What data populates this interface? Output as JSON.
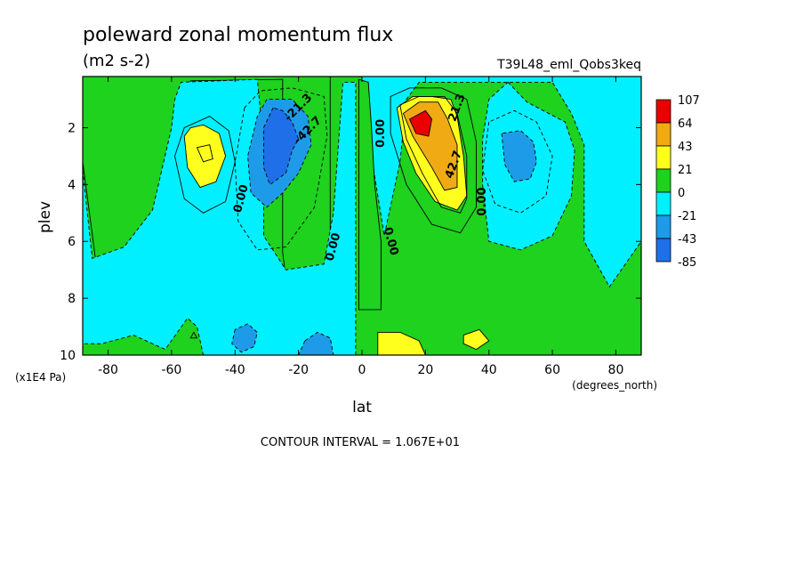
{
  "title": "poleward zonal momentum flux",
  "units": "(m2 s-2)",
  "run_label": "T39L48_eml_Qobs3keq",
  "contour_interval": "CONTOUR INTERVAL = 1.067E+01",
  "colors": {
    "lt_-43": "#1e6fe8",
    "-43_-21": "#1e9be8",
    "-21_0": "#00f0ff",
    "0_21": "#1ed21e",
    "21_43": "#ffff1e",
    "43_64": "#f0aa14",
    "gt_64": "#e80000",
    "frame": "#000000"
  },
  "chart_data": {
    "type": "heatmap",
    "xlabel": "lat",
    "ylabel": "plev",
    "x_units": "(degrees_north)",
    "y_units": "(x1E4 Pa)",
    "xlim": [
      -88,
      88
    ],
    "ylim": [
      10,
      0.2
    ],
    "x_ticks": [
      {
        "value": -80,
        "label": "-80"
      },
      {
        "value": -60,
        "label": "-60"
      },
      {
        "value": -40,
        "label": "-40"
      },
      {
        "value": -20,
        "label": "-20"
      },
      {
        "value": 0,
        "label": "0"
      },
      {
        "value": 20,
        "label": "20"
      },
      {
        "value": 40,
        "label": "40"
      },
      {
        "value": 60,
        "label": "60"
      },
      {
        "value": 80,
        "label": "80"
      }
    ],
    "y_ticks": [
      {
        "value": 2,
        "label": "2"
      },
      {
        "value": 4,
        "label": "4"
      },
      {
        "value": 6,
        "label": "6"
      },
      {
        "value": 8,
        "label": "8"
      },
      {
        "value": 10,
        "label": "10"
      }
    ],
    "colorbar": {
      "labels": [
        "107",
        "64",
        "43",
        "21",
        "0",
        "-21",
        "-43",
        "-85"
      ],
      "colors": [
        "#e80000",
        "#f0aa14",
        "#ffff1e",
        "#1ed21e",
        "#00f0ff",
        "#1e9be8",
        "#1e6fe8"
      ]
    },
    "regions": [
      {
        "level": "0_21",
        "points": [
          [
            -88,
            0.2
          ],
          [
            -88,
            3.2
          ],
          [
            -84,
            6.6
          ],
          [
            -72,
            6.3
          ],
          [
            -64,
            4.7
          ],
          [
            -58,
            2.0
          ],
          [
            -57,
            0.9
          ],
          [
            -54,
            0.35
          ],
          [
            -25,
            0.3
          ],
          [
            -25,
            6.4
          ],
          [
            -23,
            8.1
          ],
          [
            -10,
            8.4
          ],
          [
            -10,
            0.2
          ]
        ]
      },
      {
        "level": "-21_0",
        "points": [
          [
            -88,
            3.5
          ],
          [
            -85,
            6.6
          ],
          [
            -75,
            6.2
          ],
          [
            -66,
            4.9
          ],
          [
            -60,
            2.0
          ],
          [
            -59,
            1.0
          ],
          [
            -57,
            0.4
          ],
          [
            -33,
            0.3
          ],
          [
            -31,
            2.6
          ],
          [
            -31,
            5.8
          ],
          [
            -24,
            7.0
          ],
          [
            -12,
            6.8
          ],
          [
            -9,
            5.0
          ],
          [
            -6,
            0.4
          ],
          [
            -2,
            0.4
          ],
          [
            -2,
            10
          ],
          [
            -50,
            10
          ],
          [
            -52,
            9.0
          ],
          [
            -55,
            8.7
          ],
          [
            -62,
            9.8
          ],
          [
            -72,
            9.3
          ],
          [
            -82,
            9.6
          ],
          [
            -88,
            9.6
          ]
        ]
      },
      {
        "level": "-21_0",
        "points": [
          [
            0,
            0.4
          ],
          [
            2,
            0.4
          ],
          [
            3,
            3.0
          ],
          [
            7,
            5.8
          ],
          [
            12,
            3.2
          ],
          [
            14,
            1.0
          ],
          [
            18,
            0.4
          ],
          [
            60,
            0.4
          ],
          [
            66,
            1.5
          ],
          [
            70,
            2.6
          ],
          [
            70,
            6.0
          ],
          [
            78,
            7.6
          ],
          [
            88,
            6.0
          ],
          [
            88,
            0.2
          ],
          [
            0,
            0.2
          ]
        ]
      },
      {
        "level": "-21_0",
        "points": [
          [
            46,
            0.4
          ],
          [
            52,
            1.1
          ],
          [
            64,
            1.8
          ],
          [
            67,
            2.8
          ],
          [
            66,
            4.4
          ],
          [
            60,
            5.8
          ],
          [
            50,
            6.3
          ],
          [
            40,
            6.0
          ],
          [
            38,
            4.0
          ],
          [
            38,
            2.4
          ],
          [
            40,
            1.0
          ]
        ]
      },
      {
        "level": "0_21",
        "points": [
          [
            -1,
            0.3
          ],
          [
            -1,
            8.4
          ],
          [
            6,
            8.4
          ],
          [
            6,
            6.0
          ],
          [
            4,
            4.0
          ],
          [
            3,
            2.0
          ],
          [
            2,
            0.4
          ]
        ]
      },
      {
        "level": "-43_-21",
        "points": [
          [
            -30,
            1.0
          ],
          [
            -33,
            1.6
          ],
          [
            -36,
            3.0
          ],
          [
            -35,
            4.3
          ],
          [
            -30,
            4.8
          ],
          [
            -25,
            4.3
          ],
          [
            -20,
            3.6
          ],
          [
            -16,
            2.6
          ],
          [
            -17,
            1.6
          ],
          [
            -22,
            1.0
          ]
        ]
      },
      {
        "level": "lt_-43",
        "points": [
          [
            -28,
            1.3
          ],
          [
            -31,
            2.0
          ],
          [
            -31,
            3.4
          ],
          [
            -29,
            4.0
          ],
          [
            -24,
            3.6
          ],
          [
            -22,
            2.8
          ],
          [
            -20,
            2.4
          ],
          [
            -22,
            1.8
          ],
          [
            -25,
            1.4
          ]
        ]
      },
      {
        "level": "-43_-21",
        "points": [
          [
            44,
            2.2
          ],
          [
            45,
            3.3
          ],
          [
            48,
            3.9
          ],
          [
            53,
            3.8
          ],
          [
            55,
            3.2
          ],
          [
            54,
            2.5
          ],
          [
            50,
            2.1
          ]
        ]
      },
      {
        "level": "21_43",
        "points": [
          [
            -56,
            2.3
          ],
          [
            -55,
            3.4
          ],
          [
            -51,
            4.1
          ],
          [
            -46,
            3.9
          ],
          [
            -43,
            3.0
          ],
          [
            -45,
            2.2
          ],
          [
            -50,
            1.9
          ],
          [
            -54,
            2.0
          ]
        ]
      },
      {
        "level": "21_43",
        "points": [
          [
            11,
            1.3
          ],
          [
            13,
            2.5
          ],
          [
            17,
            3.6
          ],
          [
            23,
            4.6
          ],
          [
            30,
            4.9
          ],
          [
            33,
            4.4
          ],
          [
            32,
            3.0
          ],
          [
            30,
            1.6
          ],
          [
            28,
            1.0
          ],
          [
            22,
            0.9
          ],
          [
            16,
            0.9
          ]
        ]
      },
      {
        "level": "43_64",
        "points": [
          [
            13,
            1.5
          ],
          [
            16,
            2.3
          ],
          [
            22,
            3.4
          ],
          [
            26,
            4.2
          ],
          [
            30,
            4.1
          ],
          [
            30,
            2.6
          ],
          [
            27,
            1.7
          ],
          [
            24,
            1.1
          ],
          [
            18,
            1.1
          ]
        ]
      },
      {
        "level": "gt_64",
        "points": [
          [
            15,
            1.7
          ],
          [
            17,
            2.2
          ],
          [
            21,
            2.3
          ],
          [
            22,
            1.7
          ],
          [
            20,
            1.4
          ]
        ]
      },
      {
        "level": "-43_-21",
        "points": [
          [
            -40,
            9.1
          ],
          [
            -41,
            9.6
          ],
          [
            -38,
            9.9
          ],
          [
            -34,
            9.7
          ],
          [
            -33,
            9.2
          ],
          [
            -36,
            8.9
          ]
        ]
      },
      {
        "level": "-43_-21",
        "points": [
          [
            -18,
            9.5
          ],
          [
            -20,
            10
          ],
          [
            -9,
            10
          ],
          [
            -10,
            9.4
          ],
          [
            -14,
            9.2
          ]
        ]
      },
      {
        "level": "21_43",
        "points": [
          [
            5,
            9.2
          ],
          [
            5,
            10
          ],
          [
            20,
            10
          ],
          [
            18,
            9.5
          ],
          [
            12,
            9.2
          ]
        ]
      },
      {
        "level": "21_43",
        "points": [
          [
            32,
            9.3
          ],
          [
            32,
            9.6
          ],
          [
            36,
            9.8
          ],
          [
            40,
            9.5
          ],
          [
            37,
            9.1
          ]
        ]
      }
    ],
    "contours": [
      {
        "style": "solid",
        "points": [
          [
            -56,
            2.0
          ],
          [
            -59,
            3.0
          ],
          [
            -56,
            4.5
          ],
          [
            -50,
            5.0
          ],
          [
            -43,
            4.6
          ],
          [
            -40,
            3.2
          ],
          [
            -42,
            2.1
          ],
          [
            -48,
            1.6
          ]
        ]
      },
      {
        "style": "dashed",
        "points": [
          [
            -37,
            1.3
          ],
          [
            -40,
            3.2
          ],
          [
            -39,
            5.3
          ],
          [
            -33,
            6.3
          ],
          [
            -24,
            6.2
          ],
          [
            -15,
            4.8
          ],
          [
            -11,
            2.3
          ],
          [
            -12,
            0.9
          ],
          [
            -22,
            0.6
          ],
          [
            -32,
            0.7
          ]
        ]
      },
      {
        "style": "dashed",
        "points": [
          [
            40,
            1.8
          ],
          [
            38,
            3.5
          ],
          [
            42,
            4.7
          ],
          [
            50,
            5.0
          ],
          [
            58,
            4.4
          ],
          [
            60,
            3.0
          ],
          [
            55,
            1.8
          ],
          [
            48,
            1.4
          ]
        ]
      },
      {
        "style": "solid",
        "points": [
          [
            9,
            0.9
          ],
          [
            9,
            2.2
          ],
          [
            14,
            4.0
          ],
          [
            22,
            5.4
          ],
          [
            31,
            5.7
          ],
          [
            36,
            4.8
          ],
          [
            36,
            2.5
          ],
          [
            33,
            1.0
          ],
          [
            25,
            0.6
          ],
          [
            15,
            0.6
          ]
        ]
      },
      {
        "style": "solid",
        "points": [
          [
            12,
            1.2
          ],
          [
            14,
            2.4
          ],
          [
            19,
            3.6
          ],
          [
            25,
            4.8
          ],
          [
            31,
            5.0
          ],
          [
            33,
            4.5
          ],
          [
            33,
            3.0
          ],
          [
            30,
            1.5
          ],
          [
            26,
            0.9
          ],
          [
            18,
            0.9
          ]
        ]
      },
      {
        "style": "solid",
        "points": [
          [
            -52,
            2.7
          ],
          [
            -50,
            3.2
          ],
          [
            -47,
            3.1
          ],
          [
            -48,
            2.6
          ]
        ]
      },
      {
        "style": "solid",
        "points": [
          [
            -53,
            9.2
          ],
          [
            -54,
            9.4
          ],
          [
            -52,
            9.4
          ]
        ]
      }
    ],
    "contour_labels": [
      {
        "x": -38,
        "y": 4.5,
        "text": "0.00",
        "angle": -75
      },
      {
        "x": -9,
        "y": 6.2,
        "text": "0.00",
        "angle": -75
      },
      {
        "x": 9,
        "y": 6.0,
        "text": "0.00",
        "angle": 75
      },
      {
        "x": 6,
        "y": 2.2,
        "text": "0.00",
        "angle": -90
      },
      {
        "x": 38,
        "y": 4.6,
        "text": "0.00",
        "angle": -90
      },
      {
        "x": 29,
        "y": 3.3,
        "text": "42.7",
        "angle": -70
      },
      {
        "x": 30,
        "y": 1.3,
        "text": "21.3",
        "angle": -70
      },
      {
        "x": -17,
        "y": 2.1,
        "text": "-42.7",
        "angle": -45
      },
      {
        "x": -20,
        "y": 1.3,
        "text": "-21.3",
        "angle": -45
      }
    ]
  }
}
